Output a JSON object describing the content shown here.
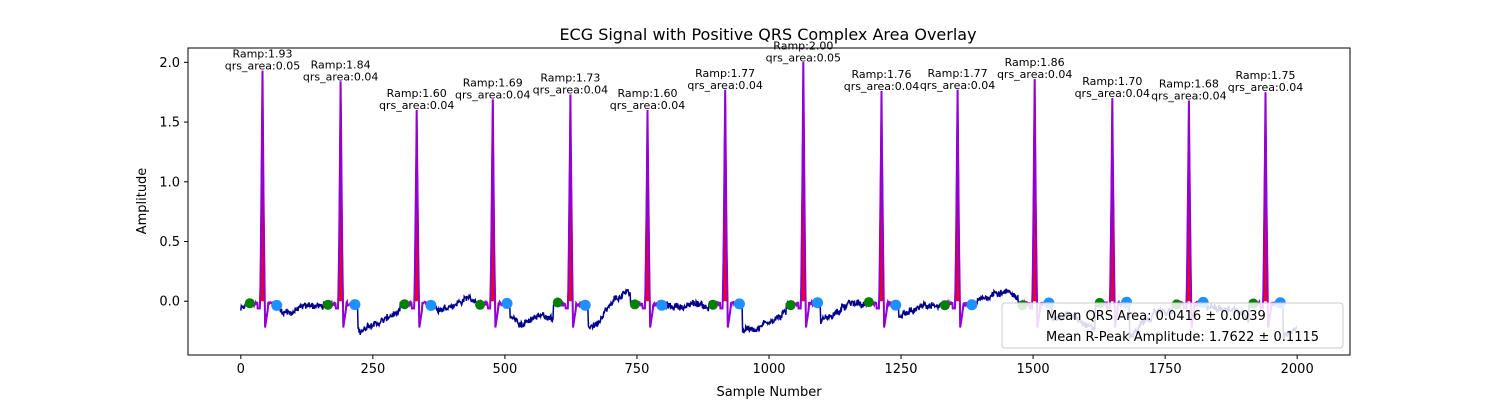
{
  "chart_data": {
    "type": "line",
    "title": "ECG Signal with Positive QRS Complex Area Overlay",
    "xlabel": "Sample Number",
    "ylabel": "Amplitude",
    "xlim": [
      -100,
      2100
    ],
    "ylim": [
      -0.45,
      2.12
    ],
    "xticks": [
      0,
      250,
      500,
      750,
      1000,
      1250,
      1500,
      1750,
      2000
    ],
    "xtick_labels": [
      "0",
      "250",
      "500",
      "750",
      "1000",
      "1250",
      "1500",
      "1750",
      "2000"
    ],
    "yticks": [
      0.0,
      0.5,
      1.0,
      1.5,
      2.0
    ],
    "ytick_labels": [
      "0.0",
      "0.5",
      "1.0",
      "1.5",
      "2.0"
    ],
    "grid": false,
    "legend": {
      "placement": "lower right",
      "entries": [
        "Mean QRS Area: 0.0416 ± 0.0039",
        "Mean R-Peak Amplitude: 1.7622 ± 0.1115"
      ]
    },
    "beats": [
      {
        "r_peak": 41,
        "r_amp": 1.93,
        "qrs_area": "0.05",
        "q_onset": 17,
        "s_offset": 68,
        "label_amp": "Ramp:1.93",
        "label_area": "qrs_area:0.05"
      },
      {
        "r_peak": 189,
        "r_amp": 1.84,
        "qrs_area": "0.04",
        "q_onset": 165,
        "s_offset": 216,
        "label_amp": "Ramp:1.84",
        "label_area": "qrs_area:0.04"
      },
      {
        "r_peak": 333,
        "r_amp": 1.6,
        "qrs_area": "0.04",
        "q_onset": 310,
        "s_offset": 360,
        "label_amp": "Ramp:1.60",
        "label_area": "qrs_area:0.04"
      },
      {
        "r_peak": 477,
        "r_amp": 1.69,
        "qrs_area": "0.04",
        "q_onset": 453,
        "s_offset": 504,
        "label_amp": "Ramp:1.69",
        "label_area": "qrs_area:0.04"
      },
      {
        "r_peak": 624,
        "r_amp": 1.73,
        "qrs_area": "0.04",
        "q_onset": 600,
        "s_offset": 652,
        "label_amp": "Ramp:1.73",
        "label_area": "qrs_area:0.04"
      },
      {
        "r_peak": 770,
        "r_amp": 1.6,
        "qrs_area": "0.04",
        "q_onset": 746,
        "s_offset": 797,
        "label_amp": "Ramp:1.60",
        "label_area": "qrs_area:0.04"
      },
      {
        "r_peak": 917,
        "r_amp": 1.77,
        "qrs_area": "0.04",
        "q_onset": 894,
        "s_offset": 944,
        "label_amp": "Ramp:1.77",
        "label_area": "qrs_area:0.04"
      },
      {
        "r_peak": 1065,
        "r_amp": 2.0,
        "qrs_area": "0.05",
        "q_onset": 1041,
        "s_offset": 1092,
        "label_amp": "Ramp:2.00",
        "label_area": "qrs_area:0.05"
      },
      {
        "r_peak": 1213,
        "r_amp": 1.76,
        "qrs_area": "0.04",
        "q_onset": 1189,
        "s_offset": 1240,
        "label_amp": "Ramp:1.76",
        "label_area": "qrs_area:0.04"
      },
      {
        "r_peak": 1357,
        "r_amp": 1.77,
        "qrs_area": "0.04",
        "q_onset": 1333,
        "s_offset": 1384,
        "label_amp": "Ramp:1.77",
        "label_area": "qrs_area:0.04"
      },
      {
        "r_peak": 1503,
        "r_amp": 1.86,
        "qrs_area": "0.04",
        "q_onset": 1480,
        "s_offset": 1530,
        "label_amp": "Ramp:1.86",
        "label_area": "qrs_area:0.04"
      },
      {
        "r_peak": 1650,
        "r_amp": 1.7,
        "qrs_area": "0.04",
        "q_onset": 1626,
        "s_offset": 1677,
        "label_amp": "Ramp:1.70",
        "label_area": "qrs_area:0.04"
      },
      {
        "r_peak": 1795,
        "r_amp": 1.68,
        "qrs_area": "0.04",
        "q_onset": 1772,
        "s_offset": 1822,
        "label_amp": "Ramp:1.68",
        "label_area": "qrs_area:0.04"
      },
      {
        "r_peak": 1940,
        "r_amp": 1.75,
        "qrs_area": "0.04",
        "q_onset": 1917,
        "s_offset": 1968,
        "label_amp": "Ramp:1.75",
        "label_area": "qrs_area:0.04"
      }
    ],
    "colors": {
      "signal": "#00008b",
      "qrs_segment": "#9400d3",
      "qrs_area_fill": "#ff0000",
      "q_onset_marker": "#008000",
      "s_offset_marker": "#1e90ff"
    }
  }
}
